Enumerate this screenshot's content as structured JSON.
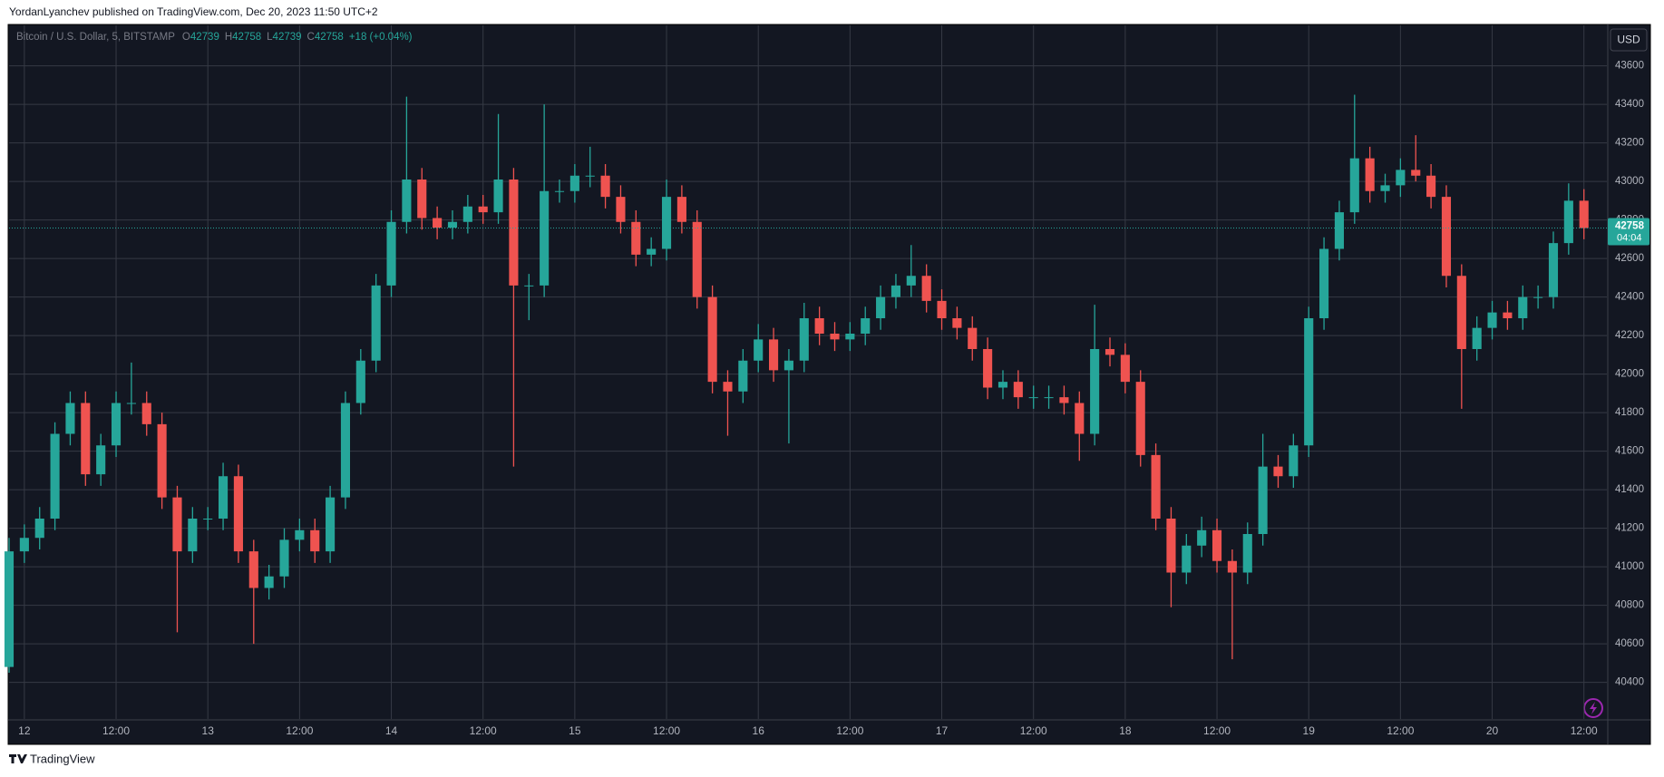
{
  "header": "YordanLyanchev published on TradingView.com, Dec 20, 2023 11:50 UTC+2",
  "footer": "TradingView",
  "currency": "USD",
  "chart_data": {
    "type": "candlestick",
    "symbol": "Bitcoin / U.S. Dollar, 5, BITSTAMP",
    "legend": [
      {
        "label": "O",
        "value": 42739
      },
      {
        "label": "H",
        "value": 42758
      },
      {
        "label": "L",
        "value": 42739
      },
      {
        "label": "C",
        "value": 42758
      }
    ],
    "change": "+18 (+0.04%)",
    "last_price": 42758,
    "countdown": "04:04",
    "up_color": "#26a69a",
    "down_color": "#ef5350",
    "grid": true,
    "xlim": [
      -2,
      207
    ],
    "ylim": [
      40210,
      43810
    ],
    "yticks": [
      40400,
      40600,
      40800,
      41000,
      41200,
      41400,
      41600,
      41800,
      42000,
      42200,
      42400,
      42600,
      42800,
      43000,
      43200,
      43400,
      43600
    ],
    "xticks": [
      {
        "value": 0,
        "label": "12"
      },
      {
        "value": 12,
        "label": "12:00"
      },
      {
        "value": 24,
        "label": "13"
      },
      {
        "value": 36,
        "label": "12:00"
      },
      {
        "value": 48,
        "label": "14"
      },
      {
        "value": 60,
        "label": "12:00"
      },
      {
        "value": 72,
        "label": "15"
      },
      {
        "value": 84,
        "label": "12:00"
      },
      {
        "value": 96,
        "label": "16"
      },
      {
        "value": 108,
        "label": "12:00"
      },
      {
        "value": 120,
        "label": "17"
      },
      {
        "value": 132,
        "label": "12:00"
      },
      {
        "value": 144,
        "label": "18"
      },
      {
        "value": 156,
        "label": "12:00"
      },
      {
        "value": 168,
        "label": "19"
      },
      {
        "value": 180,
        "label": "12:00"
      },
      {
        "value": 192,
        "label": "20"
      },
      {
        "value": 204,
        "label": "12:00"
      }
    ],
    "x": [
      -2,
      0,
      2,
      4,
      6,
      8,
      10,
      12,
      14,
      16,
      18,
      20,
      22,
      24,
      26,
      28,
      30,
      32,
      34,
      36,
      38,
      40,
      42,
      44,
      46,
      48,
      50,
      52,
      54,
      56,
      58,
      60,
      62,
      64,
      66,
      68,
      70,
      72,
      74,
      76,
      78,
      80,
      82,
      84,
      86,
      88,
      90,
      92,
      94,
      96,
      98,
      100,
      102,
      104,
      106,
      108,
      110,
      112,
      114,
      116,
      118,
      120,
      122,
      124,
      126,
      128,
      130,
      132,
      134,
      136,
      138,
      140,
      142,
      144,
      146,
      148,
      150,
      152,
      154,
      156,
      158,
      160,
      162,
      164,
      166,
      168,
      170,
      172,
      174,
      176,
      178,
      180,
      182,
      184,
      186,
      188,
      190,
      192,
      194,
      196,
      198,
      200,
      202,
      204
    ],
    "open": [
      40480,
      41080,
      41150,
      41250,
      41690,
      41850,
      41480,
      41630,
      41850,
      41850,
      41740,
      41360,
      41080,
      41250,
      41250,
      41470,
      41080,
      40890,
      40950,
      41140,
      41190,
      41080,
      41360,
      41850,
      42070,
      42460,
      42790,
      43010,
      42810,
      42760,
      42790,
      42870,
      42840,
      43010,
      42460,
      42460,
      42950,
      42950,
      43030,
      43030,
      42920,
      42790,
      42620,
      42650,
      42920,
      42790,
      42400,
      41960,
      41910,
      42070,
      42180,
      42020,
      42070,
      42290,
      42210,
      42180,
      42210,
      42290,
      42400,
      42460,
      42510,
      42380,
      42290,
      42240,
      42130,
      41930,
      41960,
      41880,
      41880,
      41880,
      41850,
      41690,
      42130,
      42100,
      41960,
      41580,
      41250,
      40970,
      41110,
      41190,
      41030,
      40970,
      41170,
      41520,
      41470,
      41630,
      42290,
      42650,
      42840,
      43120,
      42950,
      42980,
      43060,
      43030,
      42920,
      42510,
      42130,
      42240,
      42320,
      42290,
      42400,
      42400,
      42680,
      42900
    ],
    "high": [
      41150,
      41220,
      41310,
      41750,
      41910,
      41910,
      41690,
      41910,
      42060,
      41910,
      41800,
      41420,
      41310,
      41310,
      41540,
      41530,
      41140,
      41010,
      41200,
      41250,
      41250,
      41420,
      41910,
      42130,
      42520,
      42850,
      43440,
      43070,
      42870,
      42850,
      42930,
      42930,
      43350,
      43070,
      42520,
      43400,
      43010,
      43090,
      43180,
      43090,
      42980,
      42850,
      42710,
      43010,
      42980,
      42850,
      42460,
      42020,
      42130,
      42260,
      42240,
      42130,
      42370,
      42350,
      42270,
      42270,
      42350,
      42460,
      42520,
      42670,
      42570,
      42440,
      42350,
      42300,
      42190,
      42020,
      42020,
      41940,
      41940,
      41940,
      41910,
      42360,
      42190,
      42160,
      42020,
      41640,
      41310,
      41170,
      41260,
      41250,
      41090,
      41230,
      41690,
      41580,
      41690,
      42350,
      42710,
      42900,
      43450,
      43180,
      43040,
      43120,
      43240,
      43090,
      42980,
      42570,
      42300,
      42380,
      42380,
      42460,
      42460,
      42740,
      42990,
      42960
    ],
    "low": [
      40450,
      41020,
      41090,
      41190,
      41630,
      41420,
      41420,
      41570,
      41790,
      41680,
      41300,
      40660,
      41020,
      41190,
      41190,
      41020,
      40600,
      40830,
      40890,
      41080,
      41020,
      41020,
      41300,
      41790,
      42010,
      42400,
      42730,
      42750,
      42700,
      42700,
      42730,
      42780,
      42780,
      41520,
      42280,
      42400,
      42890,
      42890,
      42970,
      42860,
      42730,
      42560,
      42560,
      42590,
      42730,
      42340,
      41900,
      41680,
      41850,
      42010,
      41960,
      41640,
      42010,
      42150,
      42120,
      42120,
      42150,
      42230,
      42340,
      42400,
      42320,
      42230,
      42180,
      42070,
      41870,
      41870,
      41820,
      41820,
      41820,
      41790,
      41550,
      41630,
      42040,
      41900,
      41520,
      41190,
      40790,
      40910,
      41050,
      40970,
      40520,
      40910,
      41110,
      41410,
      41410,
      41570,
      42230,
      42590,
      42780,
      42890,
      42890,
      42920,
      43000,
      42860,
      42450,
      41820,
      42070,
      42180,
      42230,
      42230,
      42340,
      42340,
      42620,
      42700
    ],
    "close": [
      41080,
      41150,
      41250,
      41690,
      41850,
      41480,
      41630,
      41850,
      41850,
      41740,
      41360,
      41080,
      41250,
      41250,
      41470,
      41080,
      40890,
      40950,
      41140,
      41190,
      41080,
      41360,
      41850,
      42070,
      42460,
      42790,
      43010,
      42810,
      42760,
      42790,
      42870,
      42840,
      43010,
      42460,
      42460,
      42950,
      42950,
      43030,
      43030,
      42920,
      42790,
      42620,
      42650,
      42920,
      42790,
      42400,
      41960,
      41910,
      42070,
      42180,
      42020,
      42070,
      42290,
      42210,
      42180,
      42210,
      42290,
      42400,
      42460,
      42510,
      42380,
      42290,
      42240,
      42130,
      41930,
      41960,
      41880,
      41880,
      41880,
      41850,
      41690,
      42130,
      42100,
      41960,
      41580,
      41250,
      40970,
      41110,
      41190,
      41030,
      40970,
      41170,
      41520,
      41470,
      41630,
      42290,
      42650,
      42840,
      43120,
      42950,
      42980,
      43060,
      43030,
      42920,
      42510,
      42130,
      42240,
      42320,
      42290,
      42400,
      42400,
      42680,
      42900,
      42758
    ]
  }
}
